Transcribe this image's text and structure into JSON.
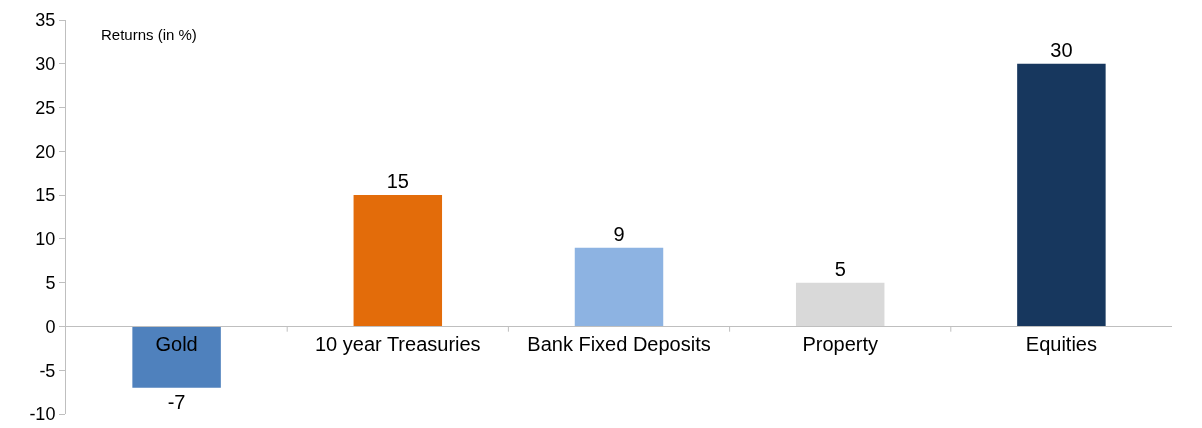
{
  "chart_data": {
    "type": "bar",
    "ylabel": "Returns (in %)",
    "categories": [
      "Gold",
      "10 year Treasuries",
      "Bank Fixed Deposits",
      "Property",
      "Equities"
    ],
    "values": [
      -7,
      15,
      9,
      5,
      30
    ],
    "colors": [
      "#4f81bd",
      "#e36c0a",
      "#8db3e2",
      "#d9d9d9",
      "#17375e"
    ],
    "ylim": [
      -10,
      35
    ],
    "yticks": [
      -10,
      -5,
      0,
      5,
      10,
      15,
      20,
      25,
      30,
      35
    ],
    "grid": false,
    "legend": false,
    "data_labels": true
  }
}
